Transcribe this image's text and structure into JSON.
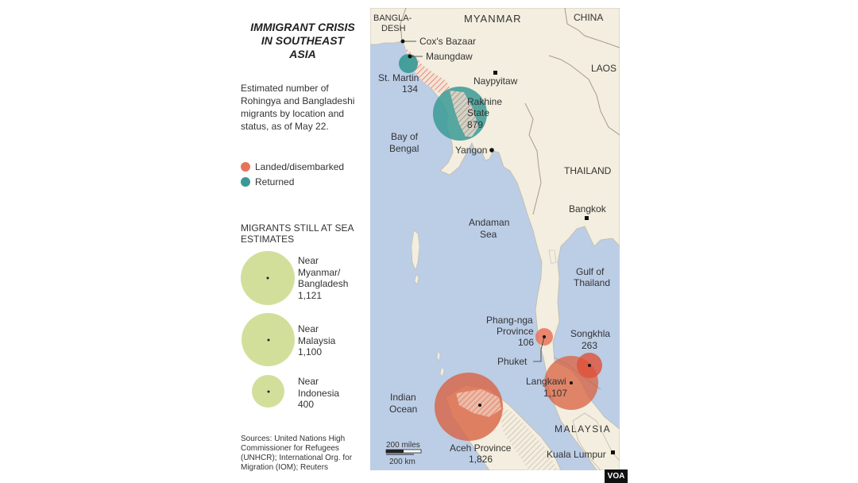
{
  "title": {
    "line1": "IMMIGRANT CRISIS",
    "line2": "IN SOUTHEAST",
    "line3": "ASIA"
  },
  "subtitle": {
    "line1": "Estimated number of",
    "line2": "Rohingya and Bangladeshi",
    "line3": "migrants by location and",
    "line4": "status, as of May 22."
  },
  "legend": {
    "landed": {
      "label": "Landed/disembarked",
      "color": "#e8735b"
    },
    "returned": {
      "label": "Returned",
      "color": "#3a9a95"
    }
  },
  "sea": {
    "heading_line1": "MIGRANTS STILL AT SEA",
    "heading_line2": "ESTIMATES",
    "color": "#d2df9b",
    "items": [
      {
        "l1": "Near",
        "l2": "Myanmar/",
        "l3": "Bangladesh",
        "value": "1,121"
      },
      {
        "l1": "Near",
        "l2": "Malaysia",
        "value": "1,100"
      },
      {
        "l1": "Near",
        "l2": "Indonesia",
        "value": "400"
      }
    ]
  },
  "sources": {
    "l1": "Sources: United Nations High",
    "l2": "Commissioner for Refugees",
    "l3": "(UNHCR); International Org. for",
    "l4": "Migration (IOM); Reuters"
  },
  "map": {
    "countries": {
      "bangladesh_1": "BANGLA-",
      "bangladesh_2": "DESH",
      "myanmar": "MYANMAR",
      "china": "CHINA",
      "laos": "LAOS",
      "thailand": "THAILAND",
      "malaysia": "MALAYSIA"
    },
    "water": {
      "bay1": "Bay of",
      "bay2": "Bengal",
      "andaman1": "Andaman",
      "andaman2": "Sea",
      "gulf1": "Gulf of",
      "gulf2": "Thailand",
      "indian1": "Indian",
      "indian2": "Ocean"
    },
    "cities": {
      "coxs": "Cox's Bazaar",
      "maungdaw": "Maungdaw",
      "naypyitaw": "Naypyitaw",
      "yangon": "Yangon",
      "bangkok": "Bangkok",
      "phuket": "Phuket",
      "kuala": "Kuala Lumpur"
    },
    "locations": {
      "stmartin": {
        "name": "St. Martin",
        "value": "134"
      },
      "rakhine": {
        "name1": "Rakhine",
        "name2": "State",
        "value": "879"
      },
      "phangnga": {
        "name1": "Phang-nga",
        "name2": "Province",
        "value": "106"
      },
      "songkhla": {
        "name": "Songkhla",
        "value": "263"
      },
      "langkawi": {
        "name": "Langkawi",
        "value": "1,107"
      },
      "aceh": {
        "name": "Aceh Province",
        "value": "1,826"
      }
    },
    "scale": {
      "miles": "200 miles",
      "km": "200 km"
    },
    "colors": {
      "sea": "#bccde6",
      "land": "#f3eedf",
      "landed": "#e8735b",
      "returned": "#3a9a95"
    }
  },
  "credit": "VOA"
}
